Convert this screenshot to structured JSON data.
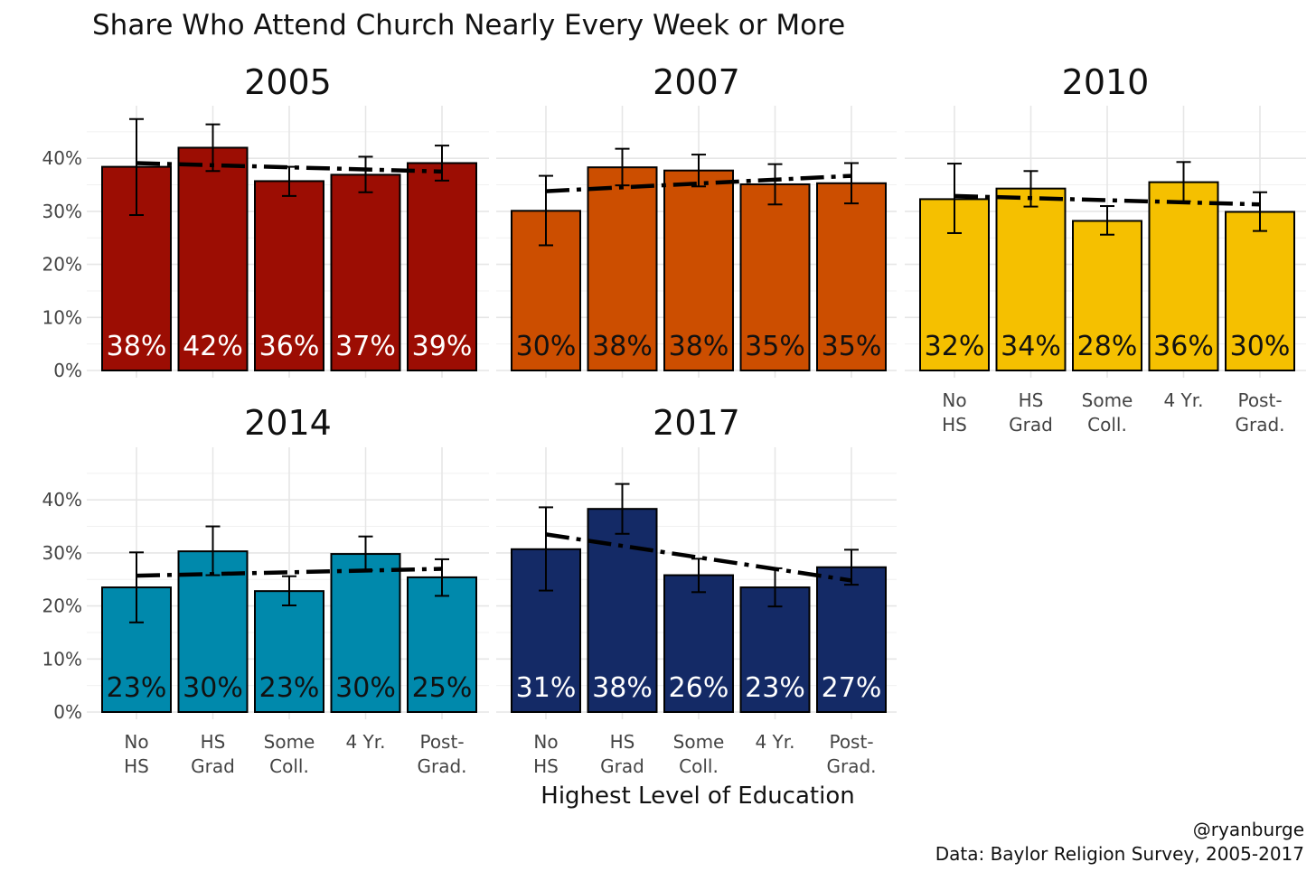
{
  "chart_data": {
    "type": "bar",
    "title": "Share Who Attend Church Nearly Every Week or More",
    "xlabel": "Highest Level of Education",
    "ylabel": "",
    "ylim": [
      0,
      50
    ],
    "y_ticks": [
      0,
      10,
      20,
      30,
      40
    ],
    "y_tick_labels": [
      "0%",
      "10%",
      "20%",
      "30%",
      "40%"
    ],
    "categories": [
      [
        "No",
        "HS"
      ],
      [
        "HS",
        "Grad"
      ],
      [
        "Some",
        "Coll."
      ],
      [
        "4 Yr."
      ],
      [
        "Post-",
        "Grad."
      ]
    ],
    "caption": [
      "@ryanburge",
      "Data: Baylor Religion Survey, 2005-2017"
    ],
    "facets": [
      {
        "year": "2005",
        "color": "#9c0d03",
        "label_color": "#ffffff",
        "values": [
          38.4,
          42.0,
          35.7,
          36.9,
          39.1
        ],
        "labels": [
          "38%",
          "42%",
          "36%",
          "37%",
          "39%"
        ],
        "ci_low": [
          29.3,
          37.6,
          32.9,
          33.6,
          35.8
        ],
        "ci_high": [
          47.4,
          46.4,
          38.4,
          40.3,
          42.4
        ],
        "trend": [
          39.1,
          37.5
        ]
      },
      {
        "year": "2007",
        "color": "#cc4e00",
        "label_color": "#111111",
        "values": [
          30.1,
          38.3,
          37.7,
          35.1,
          35.3
        ],
        "labels": [
          "30%",
          "38%",
          "38%",
          "35%",
          "35%"
        ],
        "ci_low": [
          23.6,
          34.9,
          34.7,
          31.3,
          31.5
        ],
        "ci_high": [
          36.7,
          41.8,
          40.7,
          38.9,
          39.1
        ],
        "trend": [
          33.8,
          36.7
        ]
      },
      {
        "year": "2010",
        "color": "#f5c000",
        "label_color": "#111111",
        "values": [
          32.3,
          34.3,
          28.2,
          35.5,
          29.9
        ],
        "labels": [
          "32%",
          "34%",
          "28%",
          "36%",
          "30%"
        ],
        "ci_low": [
          25.9,
          30.9,
          25.6,
          31.9,
          26.3
        ],
        "ci_high": [
          39.0,
          37.6,
          31.0,
          39.3,
          33.6
        ],
        "trend": [
          32.9,
          31.3
        ]
      },
      {
        "year": "2014",
        "color": "#0089ac",
        "label_color": "#111111",
        "values": [
          23.5,
          30.3,
          22.8,
          29.8,
          25.4
        ],
        "labels": [
          "23%",
          "30%",
          "23%",
          "30%",
          "25%"
        ],
        "ci_low": [
          16.9,
          25.8,
          20.1,
          26.7,
          21.9
        ],
        "ci_high": [
          30.1,
          35.0,
          25.6,
          33.1,
          28.8
        ],
        "trend": [
          25.7,
          27.0
        ]
      },
      {
        "year": "2017",
        "color": "#142a66",
        "label_color": "#ffffff",
        "values": [
          30.7,
          38.3,
          25.8,
          23.5,
          27.3
        ],
        "labels": [
          "31%",
          "38%",
          "26%",
          "23%",
          "27%"
        ],
        "ci_low": [
          22.9,
          33.6,
          22.6,
          19.9,
          24.0
        ],
        "ci_high": [
          38.6,
          43.0,
          28.9,
          27.1,
          30.6
        ],
        "trend": [
          33.5,
          24.8
        ]
      }
    ]
  }
}
